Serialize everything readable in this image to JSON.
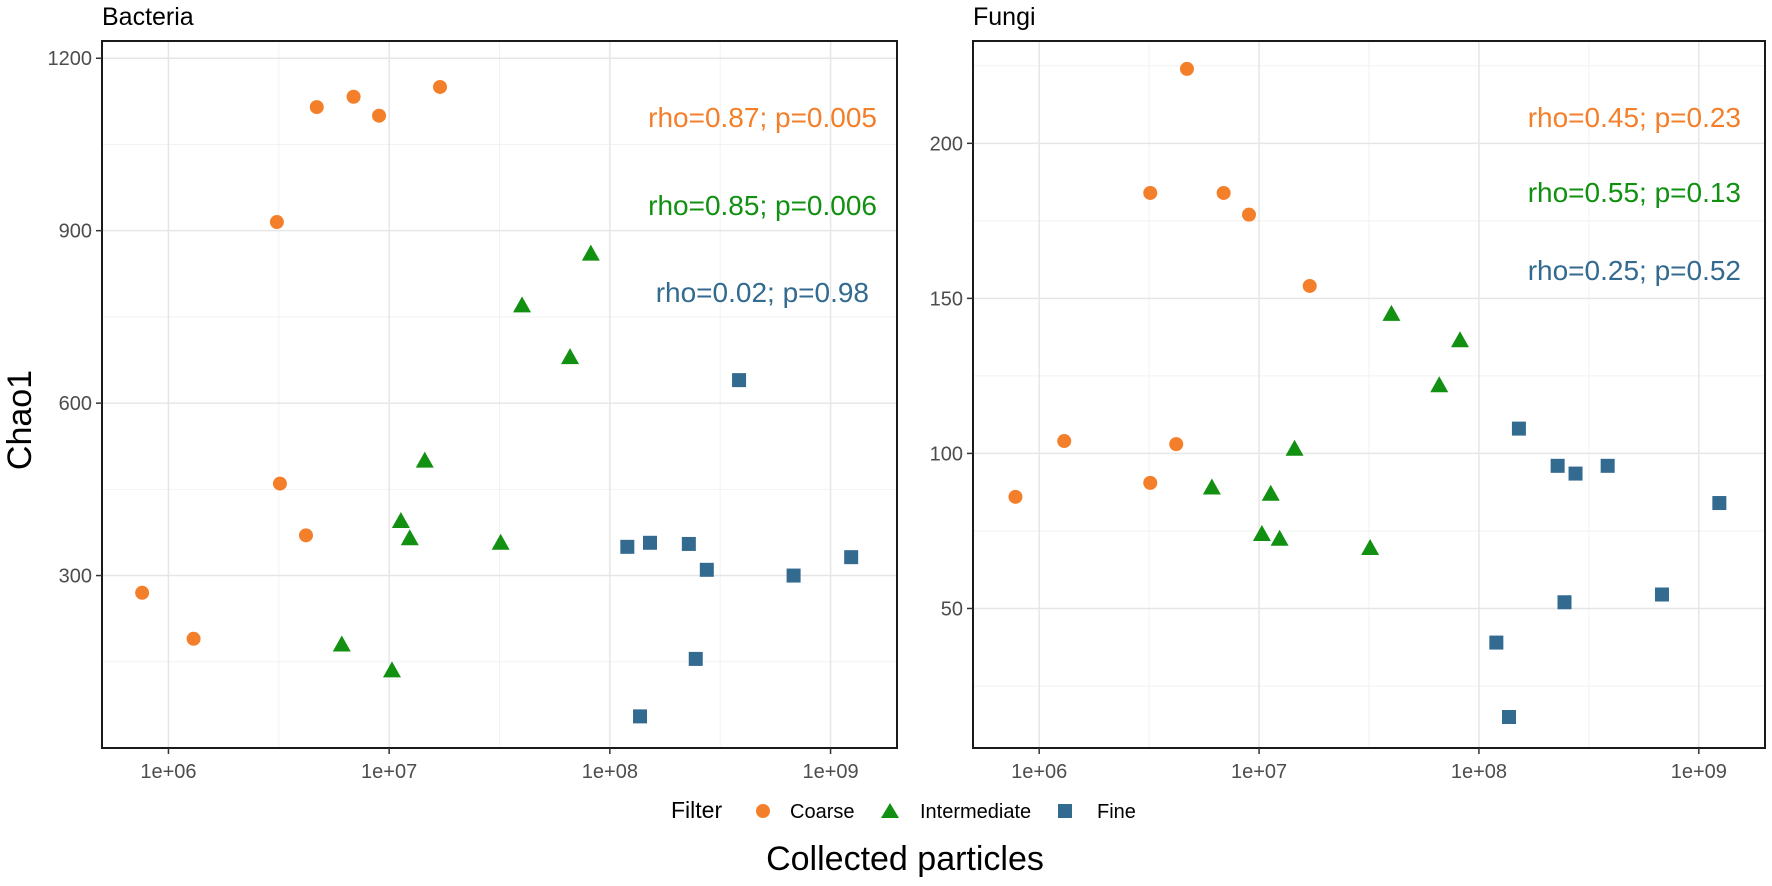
{
  "figure": {
    "ylabel": "Chao1",
    "xlabel": "Collected particles",
    "legend": {
      "title": "Filter",
      "items": [
        {
          "name": "Coarse",
          "shape": "circle",
          "color": "#F47F2A"
        },
        {
          "name": "Intermediate",
          "shape": "triangle",
          "color": "#119011"
        },
        {
          "name": "Fine",
          "shape": "square",
          "color": "#336A90"
        }
      ]
    }
  },
  "chart_data": [
    {
      "type": "scatter",
      "title": "Bacteria",
      "xscale": "log10",
      "xlim": [
        500000,
        2000000000
      ],
      "ylim": [
        0,
        1230
      ],
      "xticks": [
        {
          "value": 1000000,
          "label": "1e+06"
        },
        {
          "value": 10000000,
          "label": "1e+07"
        },
        {
          "value": 100000000,
          "label": "1e+08"
        },
        {
          "value": 1000000000,
          "label": "1e+09"
        }
      ],
      "yticks": [
        {
          "value": 300,
          "label": "300"
        },
        {
          "value": 600,
          "label": "600"
        },
        {
          "value": 900,
          "label": "900"
        },
        {
          "value": 1200,
          "label": "1200"
        }
      ],
      "yminor": [
        150,
        450,
        750,
        1050
      ],
      "series": [
        {
          "name": "Coarse",
          "points": [
            {
              "x": 760000,
              "y": 270
            },
            {
              "x": 1300000,
              "y": 190
            },
            {
              "x": 3100000,
              "y": 915
            },
            {
              "x": 3200000,
              "y": 460
            },
            {
              "x": 4200000,
              "y": 370
            },
            {
              "x": 4700000,
              "y": 1115
            },
            {
              "x": 6900000,
              "y": 1133
            },
            {
              "x": 9000000,
              "y": 1100
            },
            {
              "x": 17000000,
              "y": 1150
            }
          ]
        },
        {
          "name": "Intermediate",
          "points": [
            {
              "x": 6100000,
              "y": 180
            },
            {
              "x": 10300000,
              "y": 135
            },
            {
              "x": 11300000,
              "y": 395
            },
            {
              "x": 12400000,
              "y": 365
            },
            {
              "x": 14500000,
              "y": 500
            },
            {
              "x": 32000000,
              "y": 357
            },
            {
              "x": 40000000,
              "y": 770
            },
            {
              "x": 66000000,
              "y": 680
            },
            {
              "x": 82000000,
              "y": 860
            }
          ]
        },
        {
          "name": "Fine",
          "points": [
            {
              "x": 120000000,
              "y": 350
            },
            {
              "x": 137000000,
              "y": 55
            },
            {
              "x": 152000000,
              "y": 357
            },
            {
              "x": 228000000,
              "y": 355
            },
            {
              "x": 245000000,
              "y": 155
            },
            {
              "x": 275000000,
              "y": 310
            },
            {
              "x": 385000000,
              "y": 640
            },
            {
              "x": 680000000,
              "y": 300
            },
            {
              "x": 1240000000,
              "y": 332
            }
          ]
        }
      ],
      "annotations": [
        {
          "text": "rho=0.87; p=0.005",
          "color": "#F47F2A"
        },
        {
          "text": "rho=0.85; p=0.006",
          "color": "#119011"
        },
        {
          "text": "rho=0.02; p=0.98",
          "color": "#336A90"
        }
      ]
    },
    {
      "type": "scatter",
      "title": "Fungi",
      "xscale": "log10",
      "xlim": [
        500000,
        2000000000
      ],
      "ylim": [
        5,
        233
      ],
      "xticks": [
        {
          "value": 1000000,
          "label": "1e+06"
        },
        {
          "value": 10000000,
          "label": "1e+07"
        },
        {
          "value": 100000000,
          "label": "1e+08"
        },
        {
          "value": 1000000000,
          "label": "1e+09"
        }
      ],
      "yticks": [
        {
          "value": 50,
          "label": "50"
        },
        {
          "value": 100,
          "label": "100"
        },
        {
          "value": 150,
          "label": "150"
        },
        {
          "value": 200,
          "label": "200"
        }
      ],
      "yminor": [
        25,
        75,
        125,
        175,
        225
      ],
      "series": [
        {
          "name": "Coarse",
          "points": [
            {
              "x": 780000,
              "y": 86
            },
            {
              "x": 1300000,
              "y": 104
            },
            {
              "x": 3200000,
              "y": 90.5
            },
            {
              "x": 3200000,
              "y": 184
            },
            {
              "x": 4200000,
              "y": 103
            },
            {
              "x": 4700000,
              "y": 224
            },
            {
              "x": 6900000,
              "y": 184
            },
            {
              "x": 9000000,
              "y": 177
            },
            {
              "x": 17000000,
              "y": 154
            }
          ]
        },
        {
          "name": "Intermediate",
          "points": [
            {
              "x": 6100000,
              "y": 89
            },
            {
              "x": 10300000,
              "y": 74
            },
            {
              "x": 11300000,
              "y": 87
            },
            {
              "x": 12400000,
              "y": 72.5
            },
            {
              "x": 14500000,
              "y": 101.5
            },
            {
              "x": 32000000,
              "y": 69.5
            },
            {
              "x": 40000000,
              "y": 145
            },
            {
              "x": 66000000,
              "y": 122
            },
            {
              "x": 82000000,
              "y": 136.5
            }
          ]
        },
        {
          "name": "Fine",
          "points": [
            {
              "x": 120000000,
              "y": 39
            },
            {
              "x": 137000000,
              "y": 15
            },
            {
              "x": 152000000,
              "y": 108
            },
            {
              "x": 228000000,
              "y": 96
            },
            {
              "x": 245000000,
              "y": 52
            },
            {
              "x": 275000000,
              "y": 93.5
            },
            {
              "x": 385000000,
              "y": 96
            },
            {
              "x": 680000000,
              "y": 54.5
            },
            {
              "x": 1240000000,
              "y": 84
            }
          ]
        }
      ],
      "annotations": [
        {
          "text": "rho=0.45; p=0.23",
          "color": "#F47F2A"
        },
        {
          "text": "rho=0.55; p=0.13",
          "color": "#119011"
        },
        {
          "text": "rho=0.25; p=0.52",
          "color": "#336A90"
        }
      ]
    }
  ]
}
